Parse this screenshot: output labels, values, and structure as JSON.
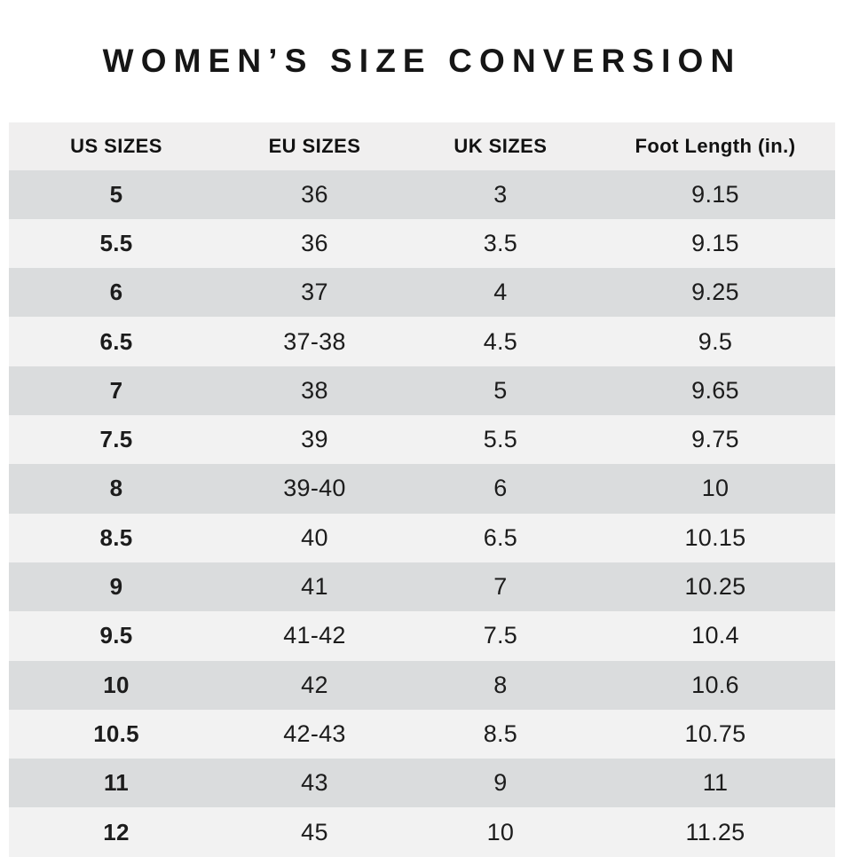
{
  "title": "WOMEN’S SIZE CONVERSION",
  "colors": {
    "page_bg": "#ffffff",
    "header_bg": "#f0efef",
    "row_dark": "#dadcdd",
    "row_light": "#f2f2f2",
    "text": "#1c1c1c"
  },
  "chart_data": {
    "type": "table",
    "title": "WOMEN’S SIZE CONVERSION",
    "columns": [
      "US SIZES",
      "EU SIZES",
      "UK SIZES",
      "Foot Length (in.)"
    ],
    "rows": [
      [
        "5",
        "36",
        "3",
        "9.15"
      ],
      [
        "5.5",
        "36",
        "3.5",
        "9.15"
      ],
      [
        "6",
        "37",
        "4",
        "9.25"
      ],
      [
        "6.5",
        "37-38",
        "4.5",
        "9.5"
      ],
      [
        "7",
        "38",
        "5",
        "9.65"
      ],
      [
        "7.5",
        "39",
        "5.5",
        "9.75"
      ],
      [
        "8",
        "39-40",
        "6",
        "10"
      ],
      [
        "8.5",
        "40",
        "6.5",
        "10.15"
      ],
      [
        "9",
        "41",
        "7",
        "10.25"
      ],
      [
        "9.5",
        "41-42",
        "7.5",
        "10.4"
      ],
      [
        "10",
        "42",
        "8",
        "10.6"
      ],
      [
        "10.5",
        "42-43",
        "8.5",
        "10.75"
      ],
      [
        "11",
        "43",
        "9",
        "11"
      ],
      [
        "12",
        "45",
        "10",
        "11.25"
      ]
    ],
    "layout": {
      "row_striping": "alternating dark/light starting dark",
      "first_column_bold": true,
      "text_align": "center"
    }
  }
}
